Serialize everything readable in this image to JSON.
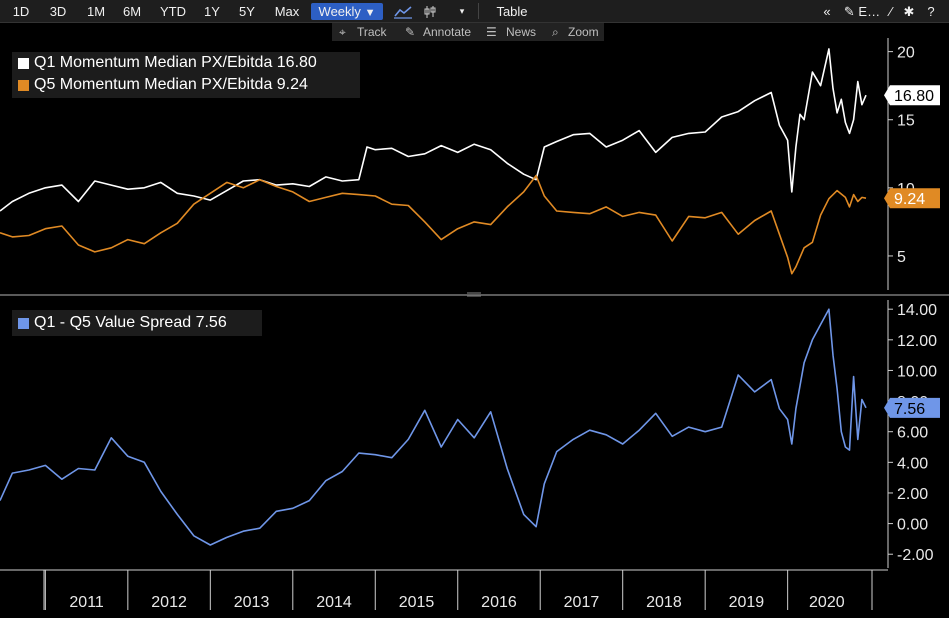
{
  "toolbar": {
    "ranges": [
      "1D",
      "3D",
      "1M",
      "6M",
      "YTD",
      "1Y",
      "5Y",
      "Max"
    ],
    "period": "Weekly",
    "period_arrow": "▼",
    "chart_icon": "line-chart-icon",
    "table_label": "Table",
    "right_icons": [
      "«",
      "✎ E…",
      "⁄",
      "✱",
      "?"
    ]
  },
  "subtoolbar": {
    "track": "Track",
    "annotate": "Annotate",
    "news": "News",
    "zoom": "Zoom"
  },
  "colors": {
    "q1": "#ffffff",
    "q5": "#e08a24",
    "spread": "#6f96e8",
    "axis": "#e8e8e8",
    "background": "#000000"
  },
  "chart_data": [
    {
      "type": "line",
      "legend_placement": "top-left",
      "ylim": [
        2.5,
        21
      ],
      "yticks": [
        5,
        10,
        15,
        20
      ],
      "series": [
        {
          "name": "Q1 Momentum Median PX/Ebitda",
          "label": "Q1 Momentum Median PX/Ebitda 16.80",
          "last": "16.80",
          "color": "#ffffff",
          "x": [
            2010.45,
            2010.6,
            2010.8,
            2011.0,
            2011.2,
            2011.4,
            2011.6,
            2011.8,
            2012.0,
            2012.2,
            2012.4,
            2012.6,
            2012.8,
            2013.0,
            2013.2,
            2013.4,
            2013.6,
            2013.8,
            2014.0,
            2014.2,
            2014.4,
            2014.6,
            2014.8,
            2014.9,
            2015.0,
            2015.2,
            2015.4,
            2015.6,
            2015.8,
            2016.0,
            2016.2,
            2016.4,
            2016.6,
            2016.8,
            2016.95,
            2017.05,
            2017.2,
            2017.4,
            2017.6,
            2017.8,
            2018.0,
            2018.2,
            2018.4,
            2018.6,
            2018.8,
            2019.0,
            2019.2,
            2019.4,
            2019.6,
            2019.8,
            2019.9,
            2020.0,
            2020.05,
            2020.1,
            2020.15,
            2020.2,
            2020.3,
            2020.4,
            2020.5,
            2020.55,
            2020.6,
            2020.65,
            2020.7,
            2020.75,
            2020.8,
            2020.85,
            2020.9,
            2020.95
          ],
          "values": [
            8.3,
            9.0,
            9.6,
            10.0,
            10.2,
            9.0,
            10.5,
            10.2,
            9.9,
            10.0,
            10.4,
            9.6,
            9.4,
            9.1,
            9.8,
            10.5,
            10.6,
            10.2,
            10.3,
            10.1,
            10.8,
            10.5,
            10.6,
            13.0,
            12.8,
            12.9,
            12.3,
            12.5,
            13.1,
            12.6,
            13.2,
            12.8,
            11.8,
            11.0,
            10.6,
            13.0,
            13.4,
            13.9,
            14.0,
            13.0,
            13.5,
            14.2,
            12.6,
            13.7,
            14.0,
            14.1,
            15.2,
            15.6,
            16.4,
            17.0,
            14.6,
            13.5,
            9.7,
            13.0,
            15.4,
            15.0,
            18.5,
            17.5,
            20.2,
            17.3,
            15.5,
            16.5,
            14.8,
            14.0,
            15.0,
            17.8,
            16.1,
            16.8
          ]
        },
        {
          "name": "Q5 Momentum Median PX/Ebitda",
          "label": "Q5 Momentum Median PX/Ebitda 9.24",
          "last": "9.24",
          "color": "#e08a24",
          "x": [
            2010.45,
            2010.6,
            2010.8,
            2011.0,
            2011.2,
            2011.4,
            2011.6,
            2011.8,
            2012.0,
            2012.2,
            2012.4,
            2012.6,
            2012.8,
            2013.0,
            2013.2,
            2013.4,
            2013.6,
            2013.8,
            2014.0,
            2014.2,
            2014.4,
            2014.6,
            2014.8,
            2015.0,
            2015.2,
            2015.4,
            2015.6,
            2015.8,
            2016.0,
            2016.2,
            2016.4,
            2016.6,
            2016.8,
            2016.95,
            2017.05,
            2017.2,
            2017.4,
            2017.6,
            2017.8,
            2018.0,
            2018.2,
            2018.4,
            2018.6,
            2018.8,
            2019.0,
            2019.2,
            2019.4,
            2019.6,
            2019.8,
            2019.9,
            2020.0,
            2020.05,
            2020.1,
            2020.2,
            2020.3,
            2020.4,
            2020.5,
            2020.6,
            2020.7,
            2020.75,
            2020.8,
            2020.85,
            2020.9,
            2020.95
          ],
          "values": [
            6.7,
            6.4,
            6.5,
            7.0,
            7.2,
            5.8,
            5.3,
            5.6,
            6.2,
            5.9,
            6.7,
            7.4,
            8.8,
            9.6,
            10.4,
            10.0,
            10.6,
            10.1,
            9.7,
            9.0,
            9.3,
            9.6,
            9.5,
            9.4,
            8.8,
            8.7,
            7.5,
            6.2,
            7.0,
            7.5,
            7.3,
            8.6,
            9.7,
            10.9,
            9.4,
            8.3,
            8.2,
            8.1,
            8.6,
            7.9,
            8.2,
            8.0,
            6.1,
            7.9,
            7.8,
            8.2,
            6.6,
            7.6,
            8.3,
            6.6,
            4.9,
            3.7,
            4.2,
            5.6,
            6.0,
            8.0,
            9.2,
            9.8,
            9.3,
            8.6,
            9.5,
            9.0,
            9.3,
            9.24
          ]
        }
      ]
    },
    {
      "type": "line",
      "legend_placement": "top-left",
      "ylim": [
        -2.9,
        14.6
      ],
      "yticks": [
        -2.0,
        0.0,
        2.0,
        4.0,
        6.0,
        8.0,
        10.0,
        12.0,
        14.0
      ],
      "ytick_labels": [
        "-2.00",
        "0.00",
        "2.00",
        "4.00",
        "6.00",
        "8.00",
        "10.00",
        "12.00",
        "14.00"
      ],
      "series": [
        {
          "name": "Q1 - Q5 Value Spread",
          "label": "Q1 - Q5 Value Spread 7.56",
          "last": "7.56",
          "color": "#6f96e8",
          "x": [
            2010.45,
            2010.6,
            2010.8,
            2011.0,
            2011.2,
            2011.4,
            2011.6,
            2011.8,
            2012.0,
            2012.2,
            2012.4,
            2012.6,
            2012.8,
            2013.0,
            2013.2,
            2013.4,
            2013.6,
            2013.8,
            2014.0,
            2014.2,
            2014.4,
            2014.6,
            2014.8,
            2015.0,
            2015.2,
            2015.4,
            2015.6,
            2015.8,
            2016.0,
            2016.2,
            2016.4,
            2016.6,
            2016.8,
            2016.95,
            2017.05,
            2017.2,
            2017.4,
            2017.6,
            2017.8,
            2018.0,
            2018.2,
            2018.4,
            2018.6,
            2018.8,
            2019.0,
            2019.2,
            2019.4,
            2019.6,
            2019.8,
            2019.9,
            2020.0,
            2020.05,
            2020.1,
            2020.2,
            2020.3,
            2020.4,
            2020.5,
            2020.55,
            2020.6,
            2020.65,
            2020.7,
            2020.75,
            2020.8,
            2020.85,
            2020.9,
            2020.95
          ],
          "values": [
            1.5,
            3.3,
            3.5,
            3.8,
            2.9,
            3.6,
            3.5,
            5.6,
            4.4,
            4.0,
            2.1,
            0.6,
            -0.8,
            -1.4,
            -0.9,
            -0.5,
            -0.3,
            0.8,
            1.0,
            1.5,
            2.8,
            3.4,
            4.6,
            4.5,
            4.3,
            5.5,
            7.4,
            5.0,
            6.8,
            5.6,
            7.3,
            3.6,
            0.6,
            -0.2,
            2.6,
            4.7,
            5.5,
            6.1,
            5.8,
            5.2,
            6.1,
            7.2,
            5.7,
            6.3,
            6.0,
            6.3,
            9.7,
            8.6,
            9.4,
            7.5,
            6.8,
            5.2,
            7.5,
            10.5,
            12.0,
            13.0,
            14.0,
            11.0,
            8.8,
            6.0,
            5.0,
            4.8,
            9.6,
            5.5,
            8.1,
            7.56
          ]
        }
      ]
    }
  ],
  "x_axis": {
    "labels": [
      "2011",
      "2012",
      "2013",
      "2014",
      "2015",
      "2016",
      "2017",
      "2018",
      "2019",
      "2020"
    ]
  }
}
